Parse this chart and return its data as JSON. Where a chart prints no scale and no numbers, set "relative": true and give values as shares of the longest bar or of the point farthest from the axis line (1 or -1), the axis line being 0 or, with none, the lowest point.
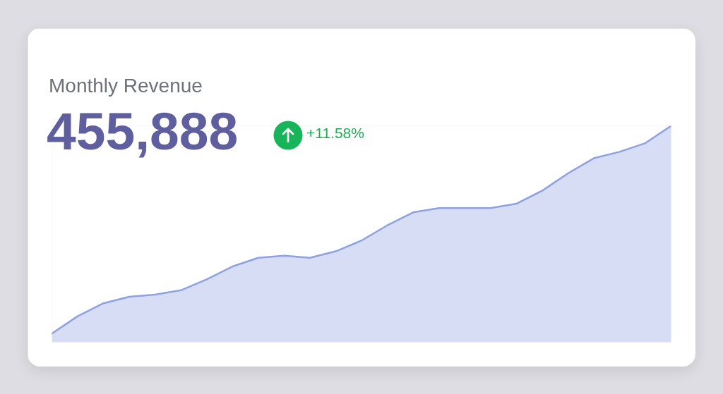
{
  "chart_data": {
    "type": "area",
    "title": "Monthly Revenue",
    "subtitle": "455,888",
    "annotations": [
      "+11.58%"
    ],
    "relative": true,
    "categories": [
      null,
      null,
      null,
      null,
      null,
      null,
      null,
      null,
      null,
      null,
      null,
      null,
      null,
      null,
      null,
      null,
      null,
      null,
      null,
      null,
      null,
      null,
      null,
      null,
      null
    ],
    "color": "#8ea2e2",
    "values": [
      0.04,
      0.12,
      0.18,
      0.21,
      0.22,
      0.24,
      0.29,
      0.35,
      0.39,
      0.4,
      0.39,
      0.42,
      0.47,
      0.54,
      0.6,
      0.62,
      0.62,
      0.62,
      0.64,
      0.7,
      0.78,
      0.85,
      0.88,
      0.92,
      1.0
    ]
  }
}
